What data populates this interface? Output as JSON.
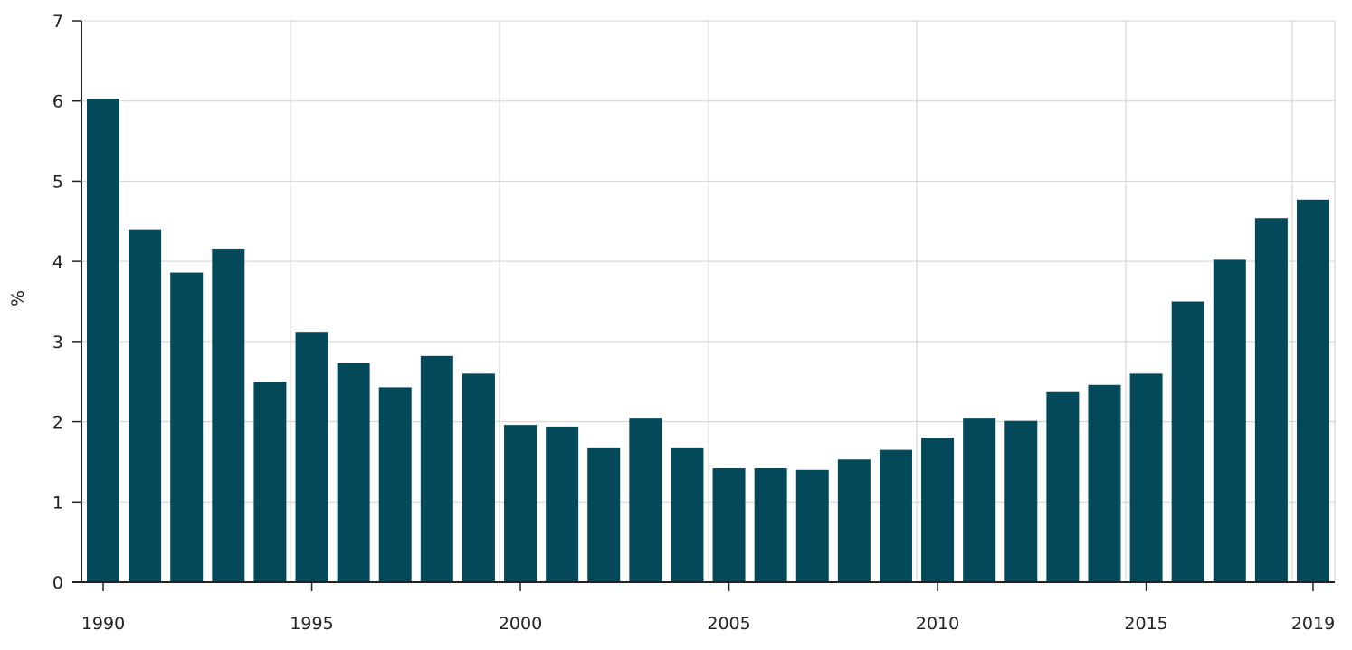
{
  "chart_data": {
    "type": "bar",
    "title": "",
    "xlabel": "",
    "ylabel": "%",
    "ylim": [
      0,
      7
    ],
    "y_ticks": [
      0,
      1,
      2,
      3,
      4,
      5,
      6,
      7
    ],
    "x_tick_labels": [
      "1990",
      "1995",
      "2000",
      "2005",
      "2010",
      "2015",
      "2019"
    ],
    "grid": true,
    "bar_color": "#034959",
    "categories": [
      "1990",
      "1991",
      "1992",
      "1993",
      "1994",
      "1995",
      "1996",
      "1997",
      "1998",
      "1999",
      "2000",
      "2001",
      "2002",
      "2003",
      "2004",
      "2005",
      "2006",
      "2007",
      "2008",
      "2009",
      "2010",
      "2011",
      "2012",
      "2013",
      "2014",
      "2015",
      "2016",
      "2017",
      "2018",
      "2019"
    ],
    "values": [
      6.03,
      4.4,
      3.86,
      4.16,
      2.5,
      3.12,
      2.73,
      2.43,
      2.82,
      2.6,
      1.96,
      1.94,
      1.67,
      2.05,
      1.67,
      1.42,
      1.42,
      1.4,
      1.53,
      1.65,
      1.8,
      2.05,
      2.01,
      2.37,
      2.46,
      2.6,
      3.5,
      4.02,
      4.54,
      4.77
    ]
  }
}
